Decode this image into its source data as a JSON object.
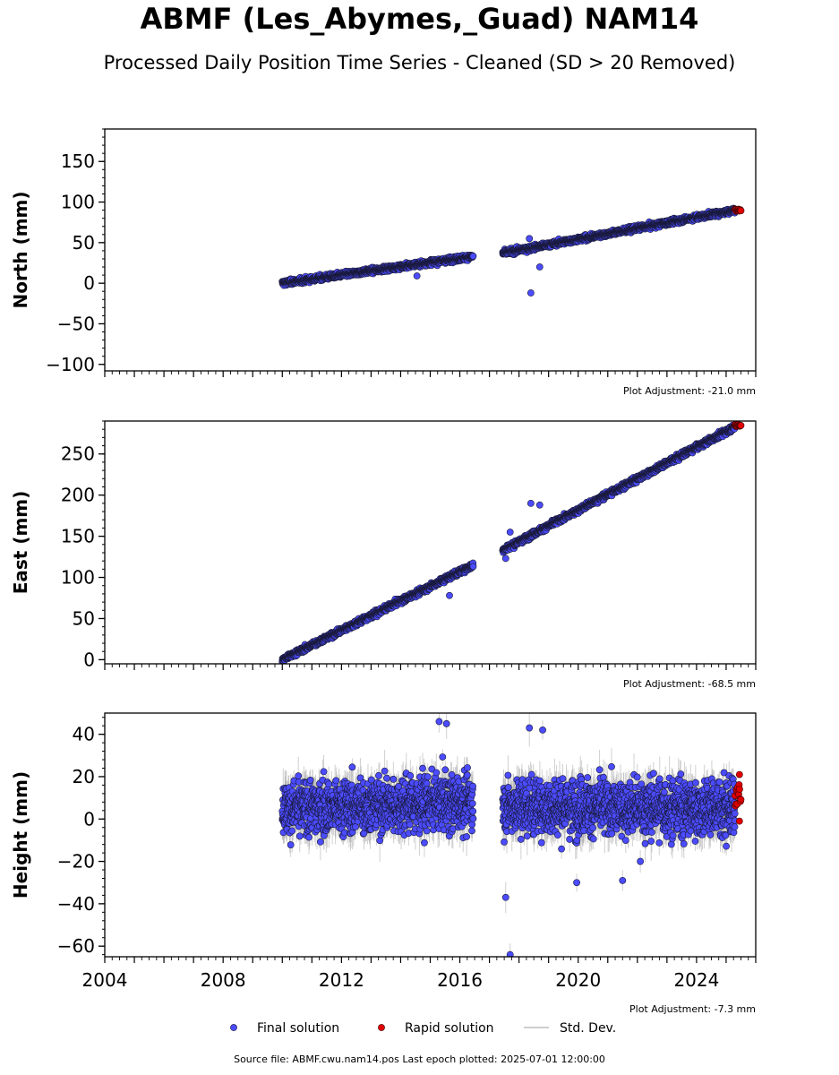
{
  "title": "ABMF (Les_Abymes,_Guad) NAM14",
  "subtitle": "Processed Daily Position Time Series - Cleaned (SD > 20 Removed)",
  "footer": "Source file: ABMF.cwu.nam14.pos  Last epoch plotted: 2025-07-01 12:00:00",
  "colors": {
    "final": "#4b4bff",
    "rapid": "#e00000",
    "stddev": "#b0b0b0"
  },
  "chart_data": [
    {
      "type": "scatter",
      "ylabel": "North (mm)",
      "ylim": [
        -108,
        190
      ],
      "xlim": [
        2004.0,
        2026.0
      ],
      "yticks": [
        -100,
        -50,
        0,
        50,
        100,
        150
      ],
      "ytick_labels": [
        "−100",
        "−50",
        "0",
        "50",
        "100",
        "150"
      ],
      "adjustment": "Plot Adjustment: -21.0 mm",
      "segments": [
        {
          "x0": 2010.0,
          "x1": 2016.45,
          "y0": 0,
          "y1": 33,
          "noise": 2.2
        },
        {
          "x0": 2017.45,
          "x1": 2025.3,
          "y0": 37,
          "y1": 90,
          "noise": 2.2
        }
      ],
      "outliers": [
        [
          2014.55,
          9
        ],
        [
          2018.4,
          -12
        ],
        [
          2018.7,
          20
        ],
        [
          2018.35,
          55
        ]
      ],
      "rapid": {
        "x0": 2025.3,
        "x1": 2025.5,
        "y": 90,
        "noise": 1.0
      }
    },
    {
      "type": "scatter",
      "ylabel": "East (mm)",
      "ylim": [
        -5,
        290
      ],
      "xlim": [
        2004.0,
        2026.0
      ],
      "yticks": [
        0,
        50,
        100,
        150,
        200,
        250
      ],
      "ytick_labels": [
        "0",
        "50",
        "100",
        "150",
        "200",
        "250"
      ],
      "adjustment": "Plot Adjustment: -68.5 mm",
      "segments": [
        {
          "x0": 2010.0,
          "x1": 2016.45,
          "y0": 0,
          "y1": 115,
          "noise": 2.3
        },
        {
          "x0": 2017.45,
          "x1": 2025.3,
          "y0": 133,
          "y1": 283,
          "noise": 2.3
        }
      ],
      "outliers": [
        [
          2015.65,
          78
        ],
        [
          2018.4,
          190
        ],
        [
          2018.7,
          188
        ],
        [
          2017.7,
          155
        ],
        [
          2017.55,
          123
        ]
      ],
      "rapid": {
        "x0": 2025.3,
        "x1": 2025.5,
        "y": 285,
        "noise": 1.0
      }
    },
    {
      "type": "scatter",
      "ylabel": "Height (mm)",
      "ylim": [
        -65,
        50
      ],
      "xlim": [
        2004.0,
        2026.0
      ],
      "yticks": [
        -60,
        -40,
        -20,
        0,
        20,
        40
      ],
      "ytick_labels": [
        "−60",
        "−40",
        "−20",
        "0",
        "20",
        "40"
      ],
      "xticks": [
        2004,
        2008,
        2012,
        2016,
        2020,
        2024
      ],
      "xtick_labels": [
        "2004",
        "2008",
        "2012",
        "2016",
        "2020",
        "2024"
      ],
      "adjustment": "Plot Adjustment: -7.3 mm",
      "segments": [
        {
          "x0": 2010.0,
          "x1": 2016.45,
          "y0": 5,
          "y1": 8,
          "noise": 9.0
        },
        {
          "x0": 2017.45,
          "x1": 2025.3,
          "y0": 6,
          "y1": 5,
          "noise": 9.0
        }
      ],
      "outliers": [
        [
          2015.3,
          46
        ],
        [
          2015.55,
          45
        ],
        [
          2018.35,
          43
        ],
        [
          2018.8,
          42
        ],
        [
          2017.55,
          -37
        ],
        [
          2017.7,
          -64
        ],
        [
          2019.95,
          -30
        ],
        [
          2021.5,
          -29
        ],
        [
          2022.1,
          -20
        ]
      ],
      "rapid": {
        "x0": 2025.3,
        "x1": 2025.5,
        "y": 11,
        "noise": 5.0,
        "extremes": [
          21,
          -1
        ]
      }
    }
  ],
  "legend": {
    "final": "Final solution",
    "rapid": "Rapid solution",
    "stddev": "Std. Dev."
  }
}
